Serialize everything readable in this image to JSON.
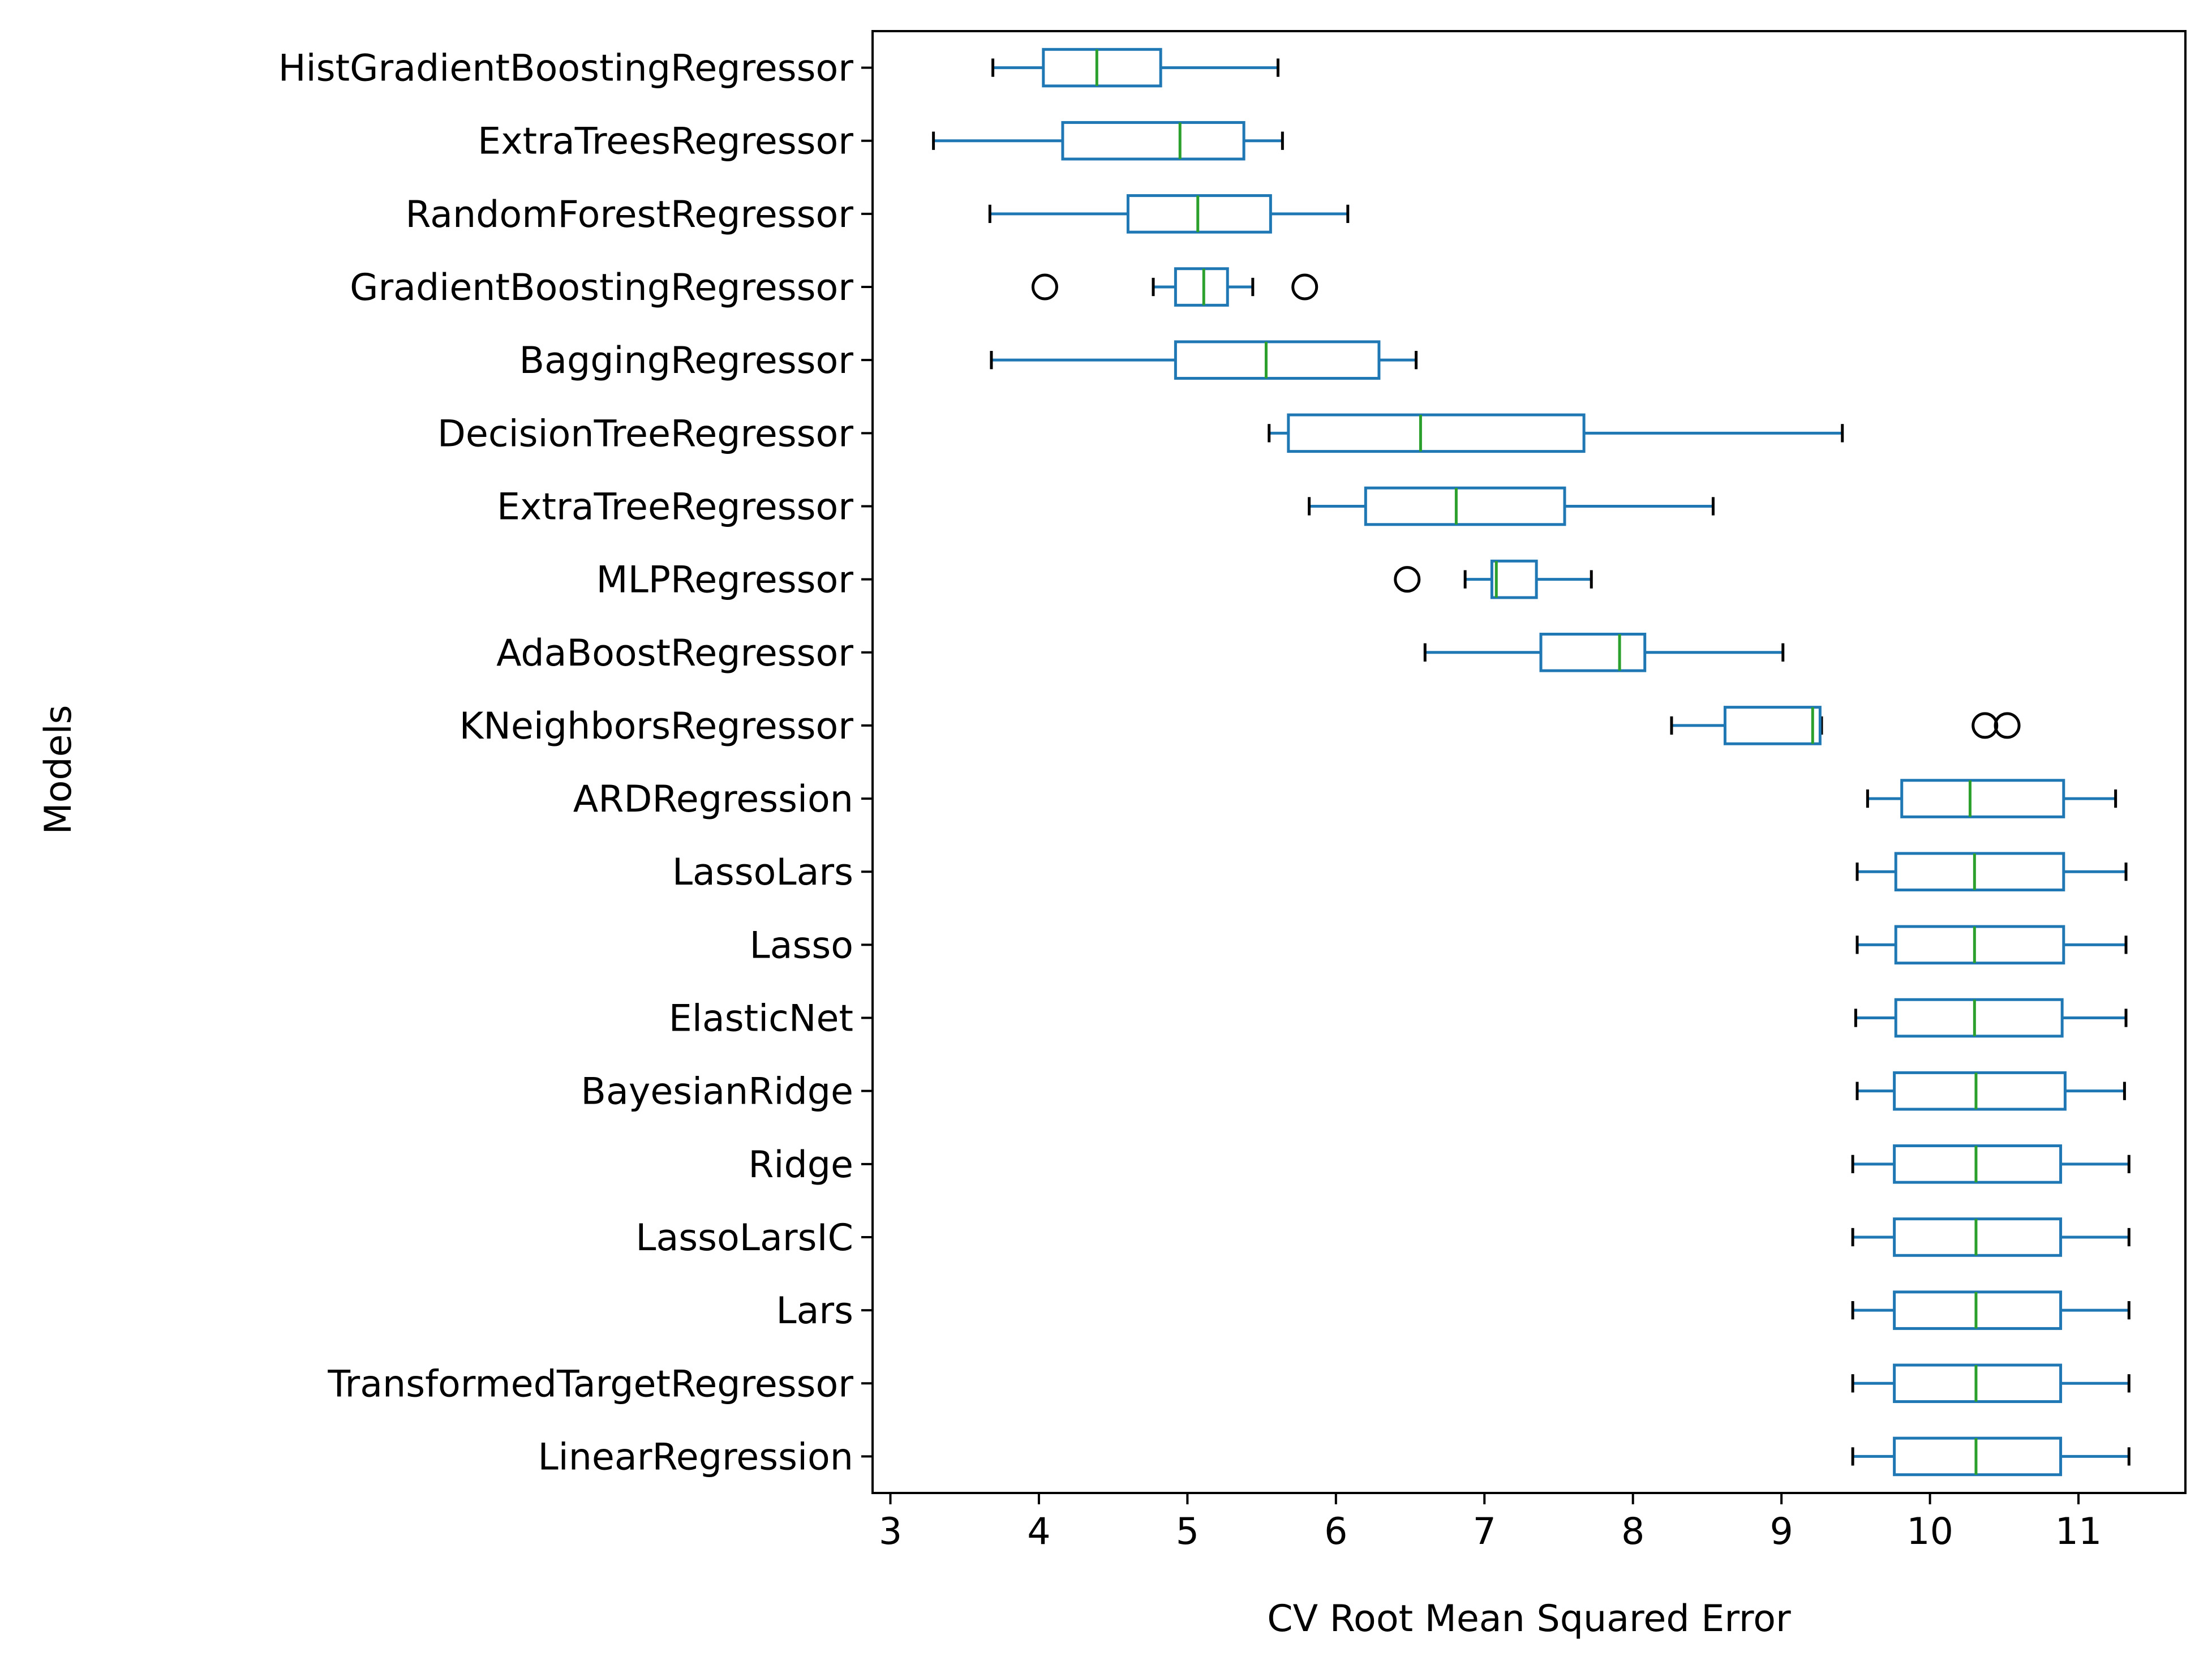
{
  "chart_data": {
    "type": "boxplot",
    "orientation": "horizontal",
    "xlabel": "CV Root Mean Squared Error",
    "ylabel": "Models",
    "xlim": [
      2.88,
      11.72
    ],
    "xticks": [
      3,
      4,
      5,
      6,
      7,
      8,
      9,
      10,
      11
    ],
    "grid": false,
    "colors": {
      "box": "#1f77b4",
      "median": "#2ca02c",
      "whisker_cap": "#000000",
      "flier": "#000000"
    },
    "categories": [
      "HistGradientBoostingRegressor",
      "ExtraTreesRegressor",
      "RandomForestRegressor",
      "GradientBoostingRegressor",
      "BaggingRegressor",
      "DecisionTreeRegressor",
      "ExtraTreeRegressor",
      "MLPRegressor",
      "AdaBoostRegressor",
      "KNeighborsRegressor",
      "ARDRegression",
      "LassoLars",
      "Lasso",
      "ElasticNet",
      "BayesianRidge",
      "Ridge",
      "LassoLarsIC",
      "Lars",
      "TransformedTargetRegressor",
      "LinearRegression"
    ],
    "boxes": [
      {
        "whislo": 3.69,
        "q1": 4.03,
        "med": 4.39,
        "q3": 4.82,
        "whishi": 5.61,
        "fliers": []
      },
      {
        "whislo": 3.29,
        "q1": 4.16,
        "med": 4.95,
        "q3": 5.38,
        "whishi": 5.64,
        "fliers": []
      },
      {
        "whislo": 3.67,
        "q1": 4.6,
        "med": 5.07,
        "q3": 5.56,
        "whishi": 6.08,
        "fliers": []
      },
      {
        "whislo": 4.77,
        "q1": 4.92,
        "med": 5.11,
        "q3": 5.27,
        "whishi": 5.44,
        "fliers": [
          4.04,
          5.79
        ]
      },
      {
        "whislo": 3.68,
        "q1": 4.92,
        "med": 5.53,
        "q3": 6.29,
        "whishi": 6.54,
        "fliers": []
      },
      {
        "whislo": 5.55,
        "q1": 5.68,
        "med": 6.57,
        "q3": 7.67,
        "whishi": 9.41,
        "fliers": []
      },
      {
        "whislo": 5.82,
        "q1": 6.2,
        "med": 6.81,
        "q3": 7.54,
        "whishi": 8.54,
        "fliers": []
      },
      {
        "whislo": 6.87,
        "q1": 7.05,
        "med": 7.08,
        "q3": 7.35,
        "whishi": 7.72,
        "fliers": [
          6.48
        ]
      },
      {
        "whislo": 6.6,
        "q1": 7.38,
        "med": 7.91,
        "q3": 8.08,
        "whishi": 9.01,
        "fliers": []
      },
      {
        "whislo": 8.26,
        "q1": 8.62,
        "med": 9.21,
        "q3": 9.26,
        "whishi": 9.27,
        "fliers": [
          10.37,
          10.52
        ]
      },
      {
        "whislo": 9.58,
        "q1": 9.81,
        "med": 10.27,
        "q3": 10.9,
        "whishi": 11.25,
        "fliers": []
      },
      {
        "whislo": 9.51,
        "q1": 9.77,
        "med": 10.3,
        "q3": 10.9,
        "whishi": 11.32,
        "fliers": []
      },
      {
        "whislo": 9.51,
        "q1": 9.77,
        "med": 10.3,
        "q3": 10.9,
        "whishi": 11.32,
        "fliers": []
      },
      {
        "whislo": 9.5,
        "q1": 9.77,
        "med": 10.3,
        "q3": 10.89,
        "whishi": 11.32,
        "fliers": []
      },
      {
        "whislo": 9.51,
        "q1": 9.76,
        "med": 10.31,
        "q3": 10.91,
        "whishi": 11.31,
        "fliers": []
      },
      {
        "whislo": 9.48,
        "q1": 9.76,
        "med": 10.31,
        "q3": 10.88,
        "whishi": 11.34,
        "fliers": []
      },
      {
        "whislo": 9.48,
        "q1": 9.76,
        "med": 10.31,
        "q3": 10.88,
        "whishi": 11.34,
        "fliers": []
      },
      {
        "whislo": 9.48,
        "q1": 9.76,
        "med": 10.31,
        "q3": 10.88,
        "whishi": 11.34,
        "fliers": []
      },
      {
        "whislo": 9.48,
        "q1": 9.76,
        "med": 10.31,
        "q3": 10.88,
        "whishi": 11.34,
        "fliers": []
      },
      {
        "whislo": 9.48,
        "q1": 9.76,
        "med": 10.31,
        "q3": 10.88,
        "whishi": 11.34,
        "fliers": []
      }
    ]
  }
}
